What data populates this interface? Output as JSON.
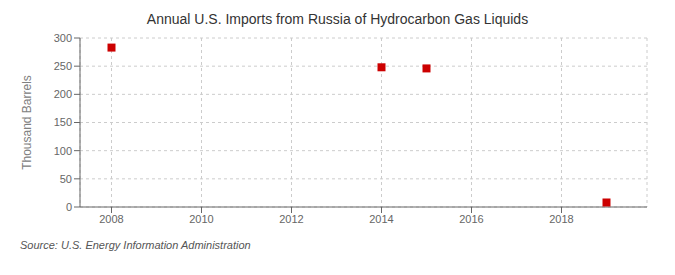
{
  "chart_data": {
    "type": "scatter",
    "title": "Annual U.S. Imports from Russia of Hydrocarbon Gas Liquids",
    "ylabel": "Thousand Barrels",
    "annotations": [
      "Source: U.S. Energy Information Administration"
    ],
    "x": [
      2008,
      2014,
      2015,
      2019
    ],
    "values": [
      283,
      248,
      246,
      8
    ],
    "color": "#cc0000",
    "marker": "square",
    "xlim": [
      2007.3,
      2019.9
    ],
    "xticks": [
      2008,
      2010,
      2012,
      2014,
      2016,
      2018
    ],
    "ylim": [
      0,
      300
    ],
    "yticks": [
      0,
      50,
      100,
      150,
      200,
      250,
      300
    ],
    "grid": true
  }
}
